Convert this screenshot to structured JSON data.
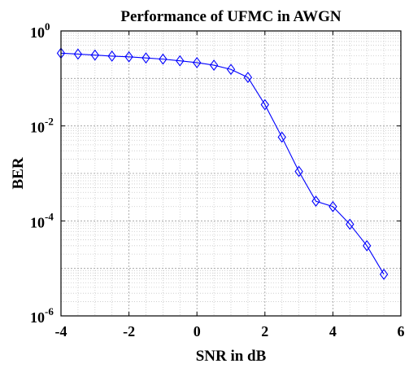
{
  "chart_data": {
    "type": "line",
    "title": "Performance of UFMC in AWGN",
    "xlabel": "SNR in dB",
    "ylabel": "BER",
    "xlim": [
      -4,
      6
    ],
    "ylim": [
      1e-06,
      1
    ],
    "y_scale": "log",
    "grid": true,
    "minor_grid": true,
    "x_ticks": [
      "-4",
      "-2",
      "0",
      "2",
      "4",
      "6"
    ],
    "y_ticks": [
      {
        "base": "10",
        "exp": "0",
        "value": 1
      },
      {
        "base": "10",
        "exp": "-2",
        "value": 0.01
      },
      {
        "base": "10",
        "exp": "-4",
        "value": 0.0001
      },
      {
        "base": "10",
        "exp": "-6",
        "value": 1e-06
      }
    ],
    "line_color": "#0000ff",
    "marker": "diamond",
    "series": [
      {
        "x": [
          -4,
          -3.5,
          -3,
          -2.5,
          -2,
          -1.5,
          -1,
          -0.5,
          0,
          0.5,
          1,
          1.5,
          2,
          2.5,
          3,
          3.5,
          4,
          4.5,
          5,
          5.5
        ],
        "y": [
          0.34,
          0.325,
          0.31,
          0.295,
          0.285,
          0.27,
          0.255,
          0.235,
          0.215,
          0.19,
          0.155,
          0.105,
          0.028,
          0.0058,
          0.0011,
          0.00026,
          0.0002,
          8.5e-05,
          3e-05,
          7.5e-06
        ]
      }
    ]
  }
}
